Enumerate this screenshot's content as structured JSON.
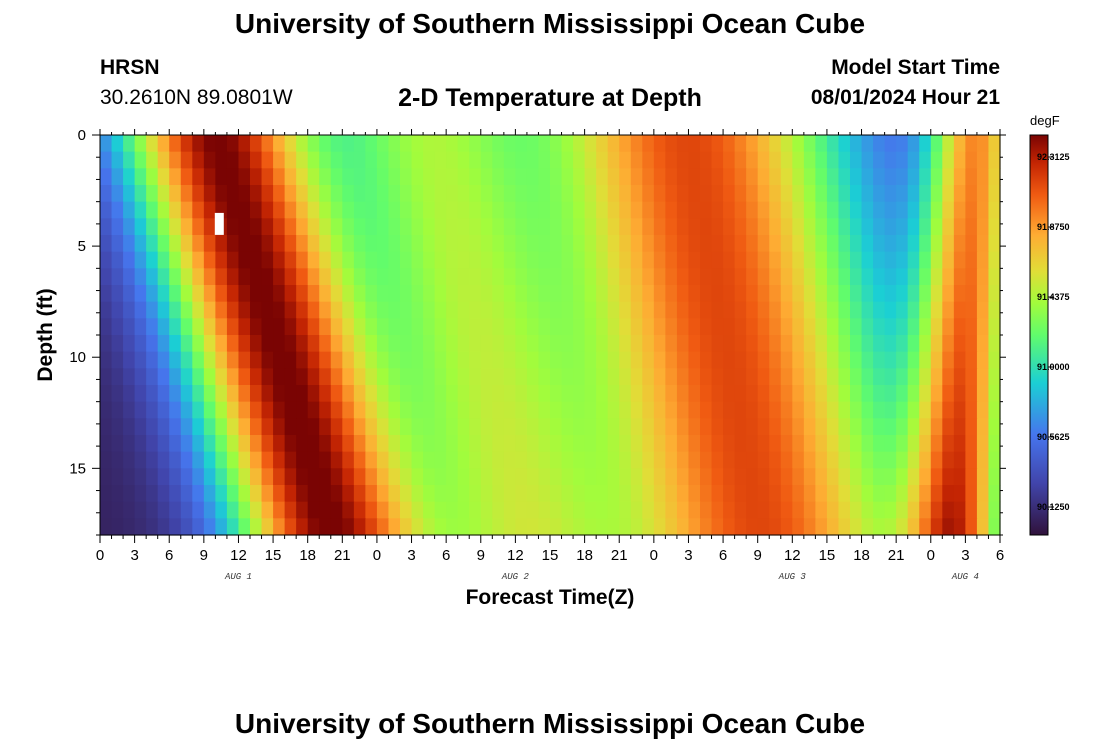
{
  "header": {
    "title": "University of Southern Mississippi Ocean Cube",
    "station": "HRSN",
    "coords": "30.2610N  89.0801W",
    "subtitle": "2-D Temperature at Depth",
    "start_label": "Model Start Time",
    "start_value": "08/01/2024 Hour 21"
  },
  "footer": {
    "title": "University of Southern Mississippi Ocean Cube"
  },
  "colors": {
    "low": "#30123b",
    "mid": "#a2fc3c",
    "high": "#7a0403",
    "marker": "#ffffff"
  },
  "chart_data": {
    "type": "heatmap",
    "title": "2-D Temperature at Depth",
    "xlabel": "Forecast Time(Z)",
    "ylabel": "Depth (ft)",
    "x_hours_range": [
      0,
      78
    ],
    "x_tick_step_hours": 3,
    "x_tick_labels": [
      "0",
      "3",
      "6",
      "9",
      "12",
      "15",
      "18",
      "21",
      "0",
      "3",
      "6",
      "9",
      "12",
      "15",
      "18",
      "21",
      "0",
      "3",
      "6",
      "9",
      "12",
      "15",
      "18",
      "21",
      "0",
      "3",
      "6"
    ],
    "date_labels": [
      {
        "label": "AUG 1",
        "hour": 12
      },
      {
        "label": "AUG 2",
        "hour": 36
      },
      {
        "label": "AUG 3",
        "hour": 60
      },
      {
        "label": "AUG 4",
        "hour": 75
      }
    ],
    "y_range_ft": [
      0,
      18
    ],
    "y_ticks": [
      0,
      5,
      10,
      15
    ],
    "colorbar": {
      "unit": "degF",
      "range": [
        89.95,
        92.45
      ],
      "tick_labels": [
        "92.3125",
        "91.8750",
        "91.4375",
        "91.0000",
        "90.5625",
        "90.1250"
      ],
      "tick_values": [
        92.3125,
        91.875,
        91.4375,
        91.0,
        90.5625,
        90.125
      ]
    },
    "approx_surface_peaks": [
      {
        "hour_center": 10,
        "hour_width": 6,
        "slope_hours_per_ft": 0.55,
        "amplitude_degF": 2.4
      },
      {
        "hour_center": 28,
        "hour_width": 6,
        "slope_hours_per_ft": 0.45,
        "amplitude_degF": 1.2
      },
      {
        "hour_center": 51,
        "hour_width": 10,
        "slope_hours_per_ft": 0.35,
        "amplitude_degF": 2.1
      },
      {
        "hour_center": 76,
        "hour_width": 3,
        "slope_hours_per_ft": -0.1,
        "amplitude_degF": 1.8
      }
    ],
    "baseline_degF": 90.05,
    "marker": {
      "hour": 10.3,
      "depth_ft": 4
    }
  }
}
